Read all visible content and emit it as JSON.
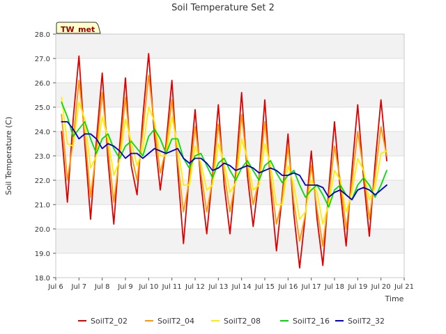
{
  "chart_data": {
    "type": "line",
    "title": "Soil Temperature Set 2",
    "xlabel": "Time",
    "ylabel": "Soil Temperature (C)",
    "site_badge": "TW_met",
    "xlim": [
      6,
      21
    ],
    "ylim": [
      18.0,
      28.0
    ],
    "x_ticks": [
      6,
      7,
      8,
      9,
      10,
      11,
      12,
      13,
      14,
      15,
      16,
      17,
      18,
      19,
      20,
      21
    ],
    "x_tick_labels": [
      "Jul 6",
      "Jul 7",
      "Jul 8",
      "Jul 9",
      "Jul 10",
      "Jul 11",
      "Jul 12",
      "Jul 13",
      "Jul 14",
      "Jul 15",
      "Jul 16",
      "Jul 17",
      "Jul 18",
      "Jul 19",
      "Jul 20",
      "Jul 21"
    ],
    "y_ticks": [
      18.0,
      19.0,
      20.0,
      21.0,
      22.0,
      23.0,
      24.0,
      25.0,
      26.0,
      27.0,
      28.0
    ],
    "y_tick_labels": [
      "18.0",
      "19.0",
      "20.0",
      "21.0",
      "22.0",
      "23.0",
      "24.0",
      "25.0",
      "26.0",
      "27.0",
      "28.0"
    ],
    "grid": true,
    "background_bands": true,
    "legend_position": "bottom",
    "x": [
      6.25,
      6.5,
      6.75,
      7.0,
      7.25,
      7.5,
      7.75,
      8.0,
      8.25,
      8.5,
      8.75,
      9.0,
      9.25,
      9.5,
      9.75,
      10.0,
      10.25,
      10.5,
      10.75,
      11.0,
      11.25,
      11.5,
      11.75,
      12.0,
      12.25,
      12.5,
      12.75,
      13.0,
      13.25,
      13.5,
      13.75,
      14.0,
      14.25,
      14.5,
      14.75,
      15.0,
      15.25,
      15.5,
      15.75,
      16.0,
      16.25,
      16.5,
      16.75,
      17.0,
      17.25,
      17.5,
      17.75,
      18.0,
      18.25,
      18.5,
      18.75,
      19.0,
      19.25,
      19.5,
      19.75,
      20.0,
      20.25
    ],
    "series": [
      {
        "name": "SoilT2_02",
        "color": "#dd0000",
        "values": [
          24.0,
          21.1,
          24.5,
          27.1,
          23.5,
          20.4,
          23.6,
          26.4,
          22.8,
          20.2,
          23.4,
          26.2,
          22.6,
          21.4,
          24.6,
          27.2,
          23.8,
          21.6,
          23.5,
          26.1,
          22.4,
          19.4,
          22.3,
          24.9,
          21.9,
          19.8,
          22.2,
          25.1,
          21.8,
          19.8,
          22.3,
          25.6,
          22.2,
          20.1,
          22.1,
          25.3,
          21.7,
          19.1,
          21.4,
          23.9,
          20.6,
          18.4,
          20.6,
          23.2,
          20.4,
          18.5,
          21.6,
          24.4,
          21.6,
          19.3,
          22.4,
          25.1,
          22.1,
          19.7,
          22.7,
          25.3,
          22.8
        ]
      },
      {
        "name": "SoilT2_04",
        "color": "#ff9900",
        "values": [
          24.7,
          22.0,
          23.6,
          26.1,
          23.9,
          21.3,
          23.2,
          25.6,
          23.3,
          21.1,
          23.0,
          25.4,
          23.1,
          22.0,
          24.0,
          26.3,
          24.2,
          22.3,
          23.3,
          25.3,
          22.8,
          20.7,
          22.0,
          24.2,
          22.3,
          20.7,
          22.0,
          24.3,
          22.3,
          20.7,
          22.0,
          24.7,
          22.6,
          21.0,
          22.0,
          24.4,
          22.1,
          20.2,
          21.2,
          23.4,
          21.1,
          19.5,
          20.6,
          22.6,
          20.8,
          19.3,
          21.3,
          23.4,
          22.0,
          20.0,
          21.9,
          24.0,
          22.4,
          20.4,
          22.2,
          24.2,
          23.0
        ]
      },
      {
        "name": "SoilT2_08",
        "color": "#ffee00",
        "values": [
          25.4,
          23.5,
          23.4,
          25.2,
          24.5,
          22.5,
          23.0,
          24.6,
          23.7,
          22.2,
          22.8,
          24.5,
          23.6,
          22.6,
          23.3,
          25.0,
          24.4,
          23.0,
          23.0,
          24.6,
          23.4,
          21.8,
          21.8,
          23.4,
          22.7,
          21.6,
          21.8,
          23.5,
          22.7,
          21.5,
          21.9,
          23.7,
          22.9,
          21.6,
          21.8,
          23.5,
          22.6,
          21.0,
          21.0,
          22.6,
          21.8,
          20.4,
          20.7,
          22.0,
          21.5,
          20.2,
          21.0,
          22.4,
          22.0,
          20.7,
          21.5,
          22.9,
          22.4,
          21.2,
          21.7,
          23.1,
          23.2
        ]
      },
      {
        "name": "SoilT2_16",
        "color": "#00dd00",
        "values": [
          25.2,
          24.6,
          23.8,
          24.1,
          24.4,
          23.7,
          23.1,
          23.7,
          23.9,
          23.3,
          22.9,
          23.4,
          23.6,
          23.3,
          23.0,
          23.8,
          24.1,
          23.7,
          23.1,
          23.7,
          23.7,
          22.9,
          22.5,
          23.0,
          23.1,
          22.6,
          22.1,
          22.7,
          22.9,
          22.4,
          22.0,
          22.5,
          22.8,
          22.4,
          22.0,
          22.6,
          22.8,
          22.3,
          21.9,
          22.2,
          22.4,
          21.8,
          21.3,
          21.6,
          21.8,
          21.4,
          20.9,
          21.6,
          21.8,
          21.4,
          21.2,
          21.8,
          22.1,
          21.8,
          21.3,
          21.8,
          22.4
        ]
      },
      {
        "name": "SoilT2_32",
        "color": "#0000cc",
        "values": [
          24.4,
          24.4,
          24.1,
          23.7,
          23.9,
          23.9,
          23.7,
          23.3,
          23.5,
          23.4,
          23.2,
          22.9,
          23.1,
          23.1,
          22.9,
          23.1,
          23.3,
          23.2,
          23.1,
          23.2,
          23.3,
          22.9,
          22.7,
          22.9,
          22.9,
          22.7,
          22.4,
          22.5,
          22.7,
          22.6,
          22.4,
          22.5,
          22.6,
          22.5,
          22.3,
          22.4,
          22.5,
          22.4,
          22.2,
          22.2,
          22.3,
          22.2,
          21.8,
          21.8,
          21.8,
          21.7,
          21.3,
          21.5,
          21.6,
          21.4,
          21.2,
          21.6,
          21.7,
          21.6,
          21.4,
          21.6,
          21.8
        ]
      }
    ]
  }
}
